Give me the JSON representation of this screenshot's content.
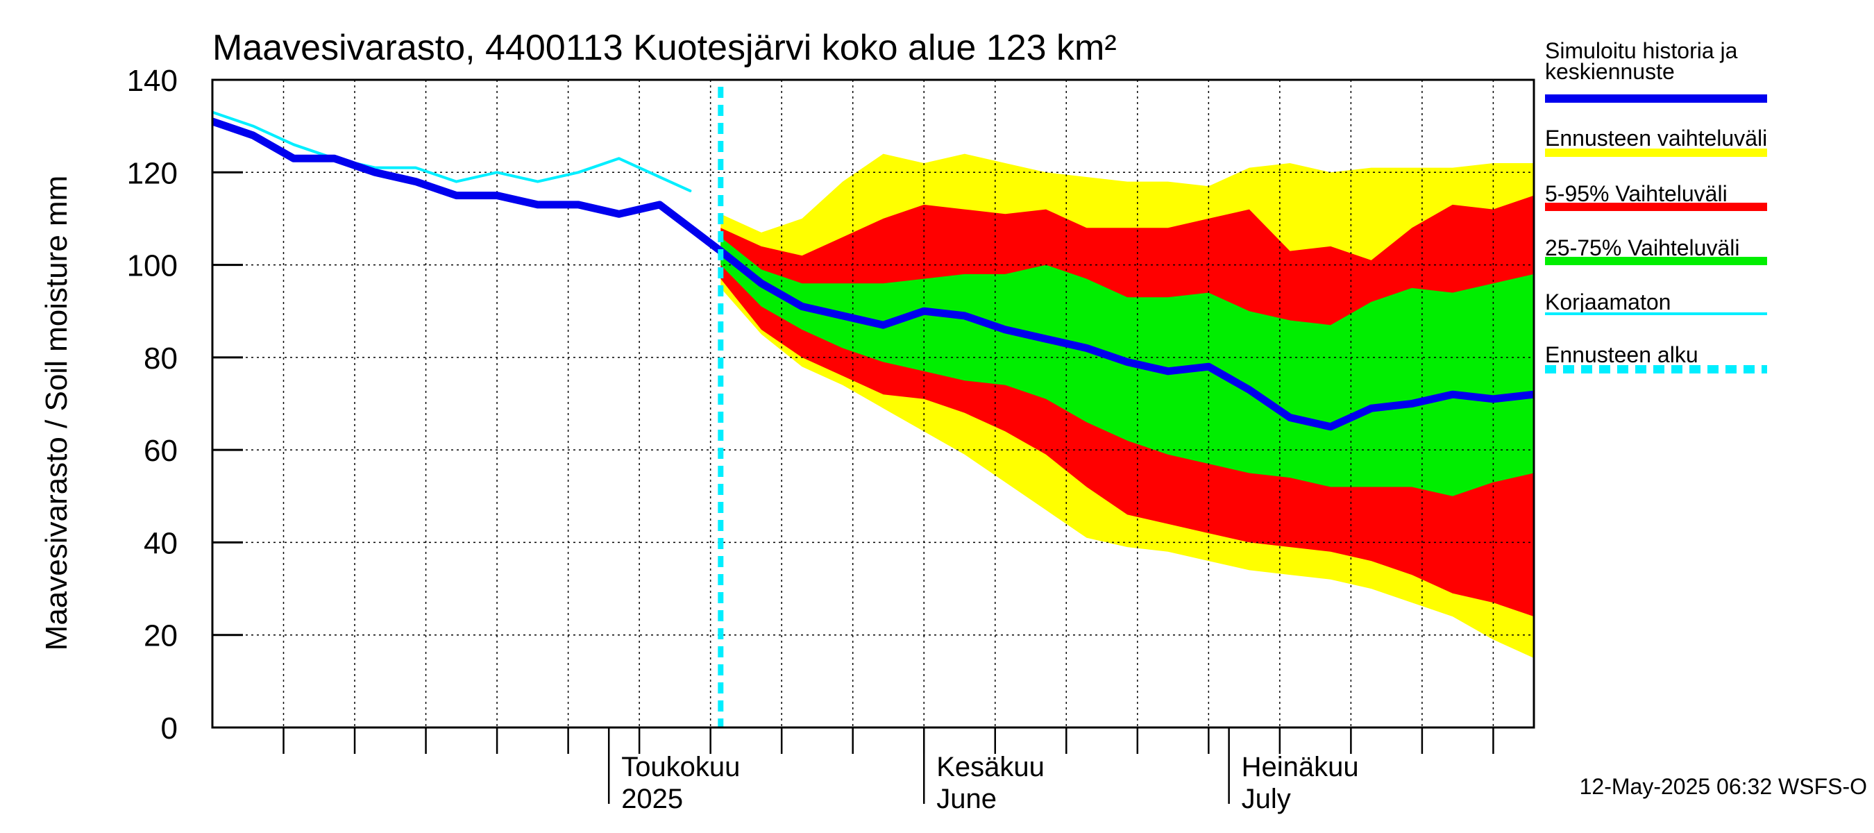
{
  "chart_data": {
    "type": "area",
    "title": "Maavesivarasto, 4400113 Kuotesjärvi koko alue 123 km²",
    "ylabel": "Maavesivarasto / Soil moisture   mm",
    "ylim": [
      0,
      140
    ],
    "yticks": [
      0,
      20,
      40,
      60,
      80,
      100,
      120,
      140
    ],
    "xlim": [
      "2025-03-23",
      "2025-07-31"
    ],
    "x_labels": [
      {
        "date": "2025-05-01",
        "line1": "Toukokuu",
        "line2": "2025"
      },
      {
        "date": "2025-06-01",
        "line1": "Kesäkuu",
        "line2": "June"
      },
      {
        "date": "2025-07-01",
        "line1": "Heinäkuu",
        "line2": "July"
      }
    ],
    "grid": true,
    "legend_position": "right",
    "forecast_start": "2025-05-12",
    "timestamp": "12-May-2025 06:32 WSFS-O",
    "legend": [
      {
        "label": "Simuloitu historia ja keskiennuste",
        "color": "#0000ee",
        "style": "thick"
      },
      {
        "label": "Ennusteen vaihteluväli",
        "color": "#ffff00",
        "style": "thick"
      },
      {
        "label": "5-95% Vaihteluväli",
        "color": "#ff0000",
        "style": "thick"
      },
      {
        "label": "25-75% Vaihteluväli",
        "color": "#00ee00",
        "style": "thick"
      },
      {
        "label": "Korjaamaton",
        "color": "#00eeff",
        "style": "thin"
      },
      {
        "label": "Ennusteen alku",
        "color": "#00eeff",
        "style": "dashed"
      }
    ],
    "colors": {
      "range": "#ffff00",
      "p5_95": "#ff0000",
      "p25_75": "#00ee00",
      "median": "#0000ee",
      "uncorrected": "#00eeff",
      "forecast_start": "#00eeff"
    },
    "series": {
      "history": {
        "x": [
          "2025-03-23",
          "2025-03-27",
          "2025-03-31",
          "2025-04-04",
          "2025-04-08",
          "2025-04-12",
          "2025-04-16",
          "2025-04-20",
          "2025-04-24",
          "2025-04-28",
          "2025-05-02",
          "2025-05-06",
          "2025-05-09",
          "2025-05-12"
        ],
        "y": [
          131,
          128,
          123,
          123,
          120,
          118,
          115,
          115,
          113,
          113,
          111,
          113,
          108,
          103
        ]
      },
      "uncorrected": {
        "x": [
          "2025-03-23",
          "2025-03-27",
          "2025-03-31",
          "2025-04-04",
          "2025-04-08",
          "2025-04-12",
          "2025-04-16",
          "2025-04-20",
          "2025-04-24",
          "2025-04-28",
          "2025-05-02",
          "2025-05-06",
          "2025-05-09"
        ],
        "y": [
          133,
          130,
          126,
          123,
          121,
          121,
          118,
          120,
          118,
          120,
          123,
          119,
          116
        ]
      },
      "forecast": {
        "x": [
          "2025-05-12",
          "2025-05-16",
          "2025-05-20",
          "2025-05-24",
          "2025-05-28",
          "2025-06-01",
          "2025-06-05",
          "2025-06-09",
          "2025-06-13",
          "2025-06-17",
          "2025-06-21",
          "2025-06-25",
          "2025-06-29",
          "2025-07-03",
          "2025-07-07",
          "2025-07-11",
          "2025-07-15",
          "2025-07-19",
          "2025-07-23",
          "2025-07-27",
          "2025-07-31"
        ],
        "median": [
          103,
          96,
          91,
          89,
          87,
          90,
          89,
          86,
          84,
          82,
          79,
          77,
          78,
          73,
          67,
          65,
          69,
          70,
          72,
          71,
          72
        ],
        "p25": [
          100,
          91,
          86,
          82,
          79,
          77,
          75,
          74,
          71,
          66,
          62,
          59,
          57,
          55,
          54,
          52,
          52,
          52,
          50,
          53,
          55
        ],
        "p75": [
          106,
          99,
          96,
          96,
          96,
          97,
          98,
          98,
          100,
          97,
          93,
          93,
          94,
          90,
          88,
          87,
          92,
          95,
          94,
          96,
          98
        ],
        "p5": [
          97,
          86,
          80,
          76,
          72,
          71,
          68,
          64,
          59,
          52,
          46,
          44,
          42,
          40,
          39,
          38,
          36,
          33,
          29,
          27,
          24
        ],
        "p95": [
          108,
          104,
          102,
          106,
          110,
          113,
          112,
          111,
          112,
          108,
          108,
          108,
          110,
          112,
          103,
          104,
          101,
          108,
          113,
          112,
          115
        ],
        "min": [
          95,
          85,
          78,
          74,
          69,
          64,
          59,
          53,
          47,
          41,
          39,
          38,
          36,
          34,
          33,
          32,
          30,
          27,
          24,
          19,
          15
        ],
        "max": [
          111,
          107,
          110,
          118,
          124,
          122,
          124,
          122,
          120,
          119,
          118,
          118,
          117,
          121,
          122,
          120,
          121,
          121,
          121,
          122,
          122
        ]
      }
    }
  }
}
